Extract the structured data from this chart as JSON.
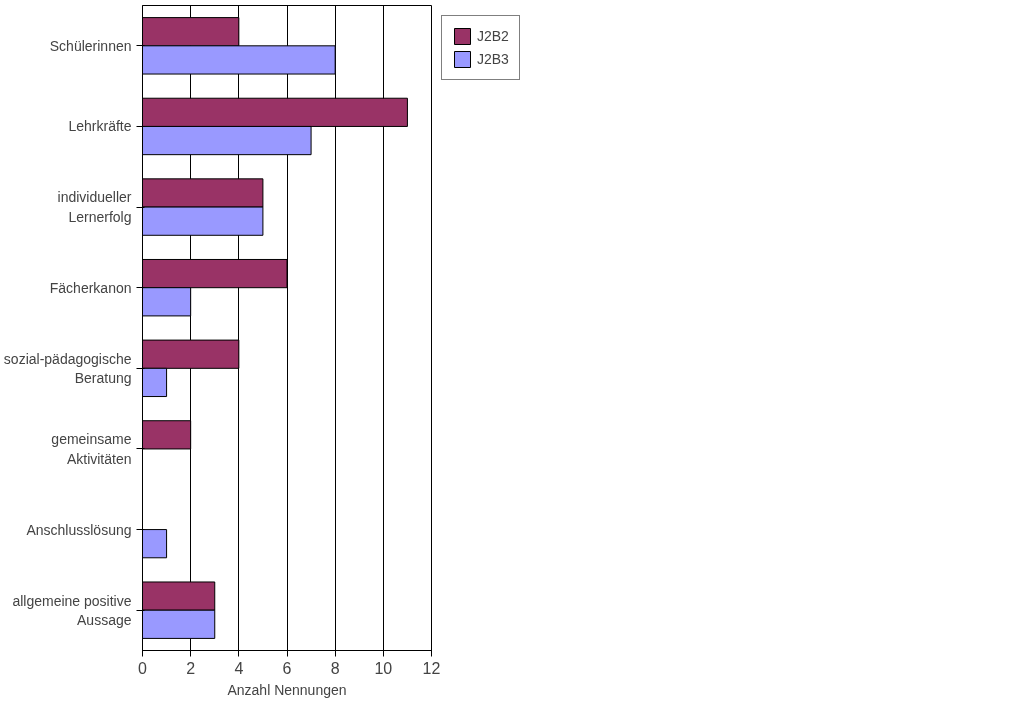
{
  "chart_data": {
    "type": "bar",
    "orientation": "horizontal",
    "xlabel": "Anzahl Nennungen",
    "categories": [
      "Schülerinnen",
      "Lehrkräfte",
      "individueller\nLernerfolg",
      "Fächerkanon",
      "sozial-pädagogische\nBeratung",
      "gemeinsame\nAktivitäten",
      "Anschlusslösung",
      "allgemeine positive\nAussage"
    ],
    "series": [
      {
        "name": "J2B2",
        "color": "#993366",
        "values": [
          4,
          11,
          5,
          6,
          4,
          2,
          0,
          3
        ]
      },
      {
        "name": "J2B3",
        "color": "#9999ff",
        "values": [
          8,
          7,
          5,
          2,
          1,
          0,
          1,
          3
        ]
      }
    ],
    "xlim": [
      0,
      12
    ],
    "xticks": [
      0,
      2,
      4,
      6,
      8,
      10,
      12
    ],
    "grid": "x",
    "legend": "right"
  }
}
